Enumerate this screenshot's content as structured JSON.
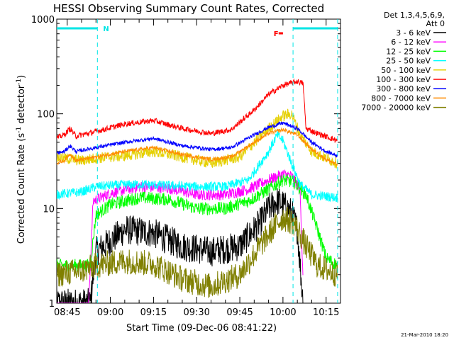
{
  "chart_data": {
    "type": "line",
    "title": "HESSI Observing Summary Count Rates, Corrected",
    "xlabel": "Start Time (09-Dec-06 08:41:22)",
    "ylabel": "Corrected Count Rate (s⁻¹ detector⁻¹)",
    "ylabel_main": "Corrected Count Rate (s",
    "ylabel_mid": " detector",
    "ylabel_end": ")",
    "ylabel_sup": "-1",
    "yscale": "log",
    "ylim": [
      1,
      1000
    ],
    "xlim": [
      "08:41:22",
      "10:20:00"
    ],
    "x_ticks": [
      "08:45",
      "09:00",
      "09:15",
      "09:30",
      "09:45",
      "10:00",
      "10:15"
    ],
    "y_ticks": [
      "1",
      "10",
      "100",
      "1000"
    ],
    "footer": "21-Mar-2010 18:20",
    "legend_header": [
      "Det 1,3,4,5,6,9,",
      "Att 0"
    ],
    "legend_position": "right",
    "flags": [
      {
        "label": "N",
        "color": "#00e5e5",
        "intervals": [
          [
            "08:41:22",
            "08:55:30"
          ],
          [
            "10:03:30",
            "10:19:00"
          ]
        ]
      },
      {
        "label": "F",
        "color": "#ff0000",
        "intervals": [
          [
            "09:58:30",
            "10:00:00"
          ]
        ]
      }
    ],
    "vertical_markers": [
      "08:55:30",
      "10:03:30",
      "10:19:00"
    ],
    "series": [
      {
        "name": "3 - 6 keV",
        "color": "#000000",
        "points": [
          [
            "08:41",
            1.0
          ],
          [
            "08:53",
            1.0
          ],
          [
            "08:55",
            3.5
          ],
          [
            "09:00",
            4.5
          ],
          [
            "09:05",
            6.0
          ],
          [
            "09:15",
            5.5
          ],
          [
            "09:25",
            4.0
          ],
          [
            "09:35",
            3.5
          ],
          [
            "09:45",
            4.0
          ],
          [
            "09:52",
            7.0
          ],
          [
            "09:55",
            10.0
          ],
          [
            "09:58",
            12.0
          ],
          [
            "10:00",
            11.0
          ],
          [
            "10:03",
            9.0
          ],
          [
            "10:05",
            6.0
          ],
          [
            "10:07",
            1.0
          ]
        ]
      },
      {
        "name": "6 - 12 keV",
        "color": "#ff00ff",
        "points": [
          [
            "08:41",
            0
          ],
          [
            "08:52",
            0
          ],
          [
            "08:54",
            12.0
          ],
          [
            "09:00",
            14.5
          ],
          [
            "09:10",
            17.0
          ],
          [
            "09:20",
            16.5
          ],
          [
            "09:30",
            14.0
          ],
          [
            "09:40",
            14.0
          ],
          [
            "09:48",
            16.0
          ],
          [
            "09:55",
            20.0
          ],
          [
            "10:00",
            23.0
          ],
          [
            "10:03",
            22.0
          ],
          [
            "10:06",
            16.0
          ],
          [
            "10:07",
            1.5
          ]
        ]
      },
      {
        "name": "12 - 25 keV",
        "color": "#00ff00",
        "points": [
          [
            "08:41",
            2.5
          ],
          [
            "08:53",
            2.5
          ],
          [
            "08:55",
            8.5
          ],
          [
            "09:00",
            11.0
          ],
          [
            "09:10",
            13.0
          ],
          [
            "09:20",
            12.5
          ],
          [
            "09:30",
            10.0
          ],
          [
            "09:40",
            10.0
          ],
          [
            "09:48",
            12.0
          ],
          [
            "09:55",
            16.0
          ],
          [
            "10:00",
            20.0
          ],
          [
            "10:04",
            19.0
          ],
          [
            "10:08",
            14.0
          ],
          [
            "10:12",
            6.0
          ],
          [
            "10:15",
            3.0
          ],
          [
            "10:19",
            2.5
          ]
        ]
      },
      {
        "name": "25 - 50 keV",
        "color": "#00ffff",
        "points": [
          [
            "08:41",
            14.0
          ],
          [
            "08:50",
            15.0
          ],
          [
            "08:55",
            17.0
          ],
          [
            "09:00",
            17.5
          ],
          [
            "09:10",
            18.0
          ],
          [
            "09:20",
            17.5
          ],
          [
            "09:30",
            17.0
          ],
          [
            "09:40",
            17.0
          ],
          [
            "09:48",
            20.0
          ],
          [
            "09:55",
            40.0
          ],
          [
            "09:58",
            60.0
          ],
          [
            "10:00",
            52.0
          ],
          [
            "10:03",
            30.0
          ],
          [
            "10:06",
            18.0
          ],
          [
            "10:10",
            14.0
          ],
          [
            "10:19",
            13.0
          ]
        ]
      },
      {
        "name": "50 - 100 keV",
        "color": "#e5d000",
        "points": [
          [
            "08:41",
            35.0
          ],
          [
            "08:50",
            32.0
          ],
          [
            "08:55",
            34.0
          ],
          [
            "09:05",
            36.0
          ],
          [
            "09:15",
            40.0
          ],
          [
            "09:25",
            35.0
          ],
          [
            "09:35",
            30.0
          ],
          [
            "09:45",
            35.0
          ],
          [
            "09:55",
            70.0
          ],
          [
            "10:00",
            95.0
          ],
          [
            "10:03",
            100.0
          ],
          [
            "10:06",
            60.0
          ],
          [
            "10:10",
            40.0
          ],
          [
            "10:19",
            30.0
          ]
        ]
      },
      {
        "name": "100 - 300 keV",
        "color": "#ff0000",
        "points": [
          [
            "08:41",
            55.0
          ],
          [
            "08:44",
            60.0
          ],
          [
            "08:46",
            70.0
          ],
          [
            "08:48",
            58.0
          ],
          [
            "08:55",
            65.0
          ],
          [
            "09:05",
            78.0
          ],
          [
            "09:15",
            85.0
          ],
          [
            "09:25",
            70.0
          ],
          [
            "09:35",
            62.0
          ],
          [
            "09:42",
            68.0
          ],
          [
            "09:50",
            110.0
          ],
          [
            "09:55",
            160.0
          ],
          [
            "10:00",
            200.0
          ],
          [
            "10:05",
            220.0
          ],
          [
            "10:07",
            210.0
          ],
          [
            "10:08",
            70.0
          ],
          [
            "10:12",
            62.0
          ],
          [
            "10:19",
            52.0
          ]
        ]
      },
      {
        "name": "300 - 800 keV",
        "color": "#0000ff",
        "points": [
          [
            "08:41",
            38.0
          ],
          [
            "08:44",
            40.0
          ],
          [
            "08:46",
            46.0
          ],
          [
            "08:48",
            40.0
          ],
          [
            "08:55",
            44.0
          ],
          [
            "09:05",
            50.0
          ],
          [
            "09:15",
            55.0
          ],
          [
            "09:25",
            46.0
          ],
          [
            "09:35",
            42.0
          ],
          [
            "09:42",
            44.0
          ],
          [
            "09:50",
            60.0
          ],
          [
            "09:55",
            72.0
          ],
          [
            "10:00",
            80.0
          ],
          [
            "10:05",
            70.0
          ],
          [
            "10:10",
            50.0
          ],
          [
            "10:15",
            40.0
          ],
          [
            "10:19",
            36.0
          ]
        ]
      },
      {
        "name": "800 - 7000 keV",
        "color": "#ff8c00",
        "points": [
          [
            "08:41",
            30.0
          ],
          [
            "08:44",
            32.0
          ],
          [
            "08:46",
            38.0
          ],
          [
            "08:48",
            32.0
          ],
          [
            "08:55",
            35.0
          ],
          [
            "09:05",
            40.0
          ],
          [
            "09:15",
            44.0
          ],
          [
            "09:25",
            37.0
          ],
          [
            "09:35",
            33.0
          ],
          [
            "09:42",
            35.0
          ],
          [
            "09:50",
            50.0
          ],
          [
            "09:55",
            62.0
          ],
          [
            "10:00",
            68.0
          ],
          [
            "10:05",
            60.0
          ],
          [
            "10:10",
            42.0
          ],
          [
            "10:15",
            33.0
          ],
          [
            "10:19",
            29.0
          ]
        ]
      },
      {
        "name": "7000 - 20000 keV",
        "color": "#808000",
        "points": [
          [
            "08:41",
            2.0
          ],
          [
            "08:50",
            2.2
          ],
          [
            "08:55",
            2.5
          ],
          [
            "09:05",
            2.8
          ],
          [
            "09:15",
            2.6
          ],
          [
            "09:25",
            1.8
          ],
          [
            "09:35",
            1.5
          ],
          [
            "09:45",
            2.0
          ],
          [
            "09:52",
            4.0
          ],
          [
            "09:58",
            7.0
          ],
          [
            "10:00",
            8.0
          ],
          [
            "10:04",
            7.0
          ],
          [
            "10:08",
            4.0
          ],
          [
            "10:12",
            2.5
          ],
          [
            "10:19",
            2.0
          ]
        ]
      }
    ]
  }
}
